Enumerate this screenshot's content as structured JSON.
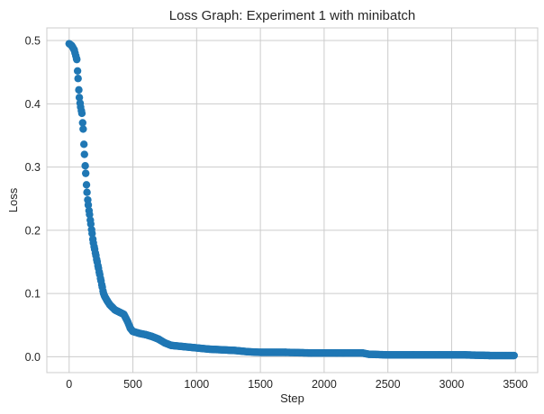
{
  "chart_data": {
    "type": "scatter",
    "title": "Loss Graph: Experiment 1 with minibatch",
    "xlabel": "Step",
    "ylabel": "Loss",
    "xlim": [
      -175,
      3675
    ],
    "ylim": [
      -0.025,
      0.52
    ],
    "xticks": [
      0,
      500,
      1000,
      1500,
      2000,
      2500,
      3000,
      3500
    ],
    "yticks": [
      0.0,
      0.1,
      0.2,
      0.3,
      0.4,
      0.5
    ],
    "xtick_labels": [
      "0",
      "500",
      "1000",
      "1500",
      "2000",
      "2500",
      "3000",
      "3500"
    ],
    "ytick_labels": [
      "0.0",
      "0.1",
      "0.2",
      "0.3",
      "0.4",
      "0.5"
    ],
    "grid": true,
    "legend": "none",
    "series": [
      {
        "color": "#1f77b4",
        "marker": "circle",
        "points": [
          [
            0,
            0.495
          ],
          [
            20,
            0.492
          ],
          [
            40,
            0.485
          ],
          [
            60,
            0.47
          ],
          [
            70,
            0.44
          ],
          [
            80,
            0.41
          ],
          [
            90,
            0.395
          ],
          [
            100,
            0.385
          ],
          [
            110,
            0.36
          ],
          [
            120,
            0.32
          ],
          [
            130,
            0.29
          ],
          [
            140,
            0.26
          ],
          [
            150,
            0.24
          ],
          [
            160,
            0.225
          ],
          [
            170,
            0.21
          ],
          [
            180,
            0.195
          ],
          [
            190,
            0.18
          ],
          [
            200,
            0.17
          ],
          [
            210,
            0.16
          ],
          [
            220,
            0.15
          ],
          [
            230,
            0.14
          ],
          [
            240,
            0.13
          ],
          [
            250,
            0.12
          ],
          [
            260,
            0.11
          ],
          [
            270,
            0.1
          ],
          [
            280,
            0.095
          ],
          [
            300,
            0.088
          ],
          [
            320,
            0.082
          ],
          [
            340,
            0.078
          ],
          [
            360,
            0.074
          ],
          [
            380,
            0.072
          ],
          [
            400,
            0.07
          ],
          [
            430,
            0.067
          ],
          [
            460,
            0.055
          ],
          [
            480,
            0.045
          ],
          [
            500,
            0.04
          ],
          [
            550,
            0.037
          ],
          [
            600,
            0.035
          ],
          [
            650,
            0.032
          ],
          [
            700,
            0.028
          ],
          [
            750,
            0.022
          ],
          [
            800,
            0.018
          ],
          [
            900,
            0.016
          ],
          [
            1000,
            0.014
          ],
          [
            1100,
            0.012
          ],
          [
            1200,
            0.011
          ],
          [
            1300,
            0.01
          ],
          [
            1400,
            0.008
          ],
          [
            1500,
            0.007
          ],
          [
            1700,
            0.007
          ],
          [
            1900,
            0.006
          ],
          [
            2100,
            0.006
          ],
          [
            2300,
            0.006
          ],
          [
            2350,
            0.004
          ],
          [
            2500,
            0.003
          ],
          [
            2700,
            0.003
          ],
          [
            2900,
            0.003
          ],
          [
            3100,
            0.003
          ],
          [
            3300,
            0.002
          ],
          [
            3490,
            0.002
          ]
        ]
      }
    ]
  }
}
